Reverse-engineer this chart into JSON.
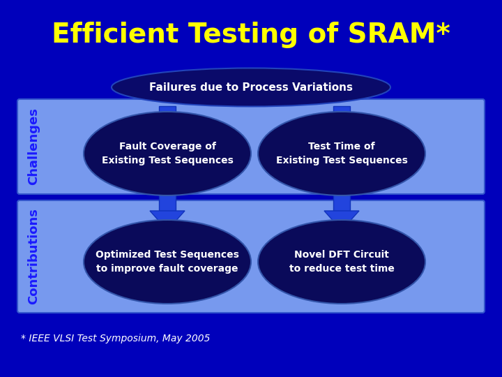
{
  "title": "Efficient Testing of SRAM*",
  "title_color": "#FFFF00",
  "title_fontsize": 28,
  "background_color": "#0000BB",
  "top_ellipse_text": "Failures due to Process Variations",
  "top_ellipse_color": "#0a0a6a",
  "top_ellipse_text_color": "white",
  "challenges_label": "Challenges",
  "contributions_label": "Contributions",
  "label_color": "#1a1aff",
  "challenges_box_color": "#7799ee",
  "contributions_box_color": "#7799ee",
  "ellipse_fill_color": "#0a0a5a",
  "ellipse_text_color": "white",
  "arrow_color": "#2244dd",
  "cell1_text": "Fault Coverage of\nExisting Test Sequences",
  "cell2_text": "Test Time of\nExisting Test Sequences",
  "cell3_text": "Optimized Test Sequences\nto improve fault coverage",
  "cell4_text": "Novel DFT Circuit\nto reduce test time",
  "footnote": "* IEEE VLSI Test Symposium, May 2005",
  "footnote_color": "white",
  "footnote_fontsize": 10
}
